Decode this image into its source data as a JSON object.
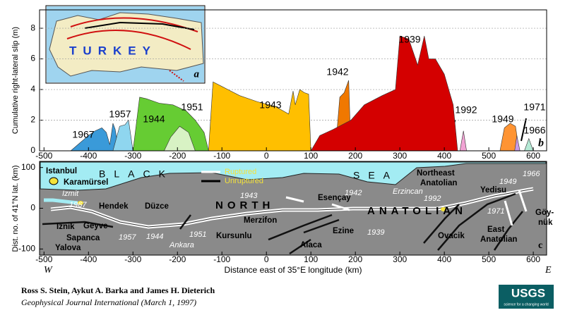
{
  "chart_data": [
    {
      "type": "area",
      "ylabel": "Cumulative right-lateral slip (m)",
      "panel_label": "b",
      "xlim": [
        -510,
        630
      ],
      "ylim": [
        0,
        9.2
      ],
      "xticks": [
        -500,
        -400,
        -300,
        -200,
        -100,
        0,
        100,
        200,
        300,
        400,
        500,
        600
      ],
      "yticks": [
        0,
        2,
        4,
        6,
        8
      ],
      "series": [
        {
          "name": "1967",
          "color": "#3a9ad9",
          "x": [
            -440,
            -420,
            -400,
            -385,
            -370,
            -360,
            -352,
            -345,
            -340,
            -332
          ],
          "values": [
            0,
            0.5,
            1.0,
            1.3,
            1.5,
            1.2,
            0.4,
            1.8,
            1.4,
            0
          ]
        },
        {
          "name": "1957",
          "color": "#8fd6ef",
          "x": [
            -345,
            -330,
            -318,
            -310,
            -300
          ],
          "values": [
            0,
            1.6,
            1.7,
            2.0,
            0
          ]
        },
        {
          "name": "1944",
          "color": "#66cc33",
          "x": [
            -300,
            -285,
            -270,
            -240,
            -210,
            -180,
            -160,
            -140,
            -130
          ],
          "values": [
            0,
            3.5,
            3.4,
            3.1,
            3.0,
            2.6,
            2.0,
            1.2,
            0
          ]
        },
        {
          "name": "1951",
          "color": "#d8f2c4",
          "x": [
            -230,
            -215,
            -195,
            -175,
            -160
          ],
          "values": [
            0,
            0.9,
            1.6,
            1.2,
            0
          ]
        },
        {
          "name": "1943",
          "color": "#ffbf00",
          "x": [
            -130,
            -120,
            -100,
            -60,
            -20,
            20,
            50,
            60,
            65,
            75,
            85,
            95,
            100
          ],
          "values": [
            0,
            4.5,
            4.2,
            3.6,
            3.2,
            2.9,
            2.4,
            3.9,
            3.0,
            4.0,
            3.8,
            3.7,
            0
          ]
        },
        {
          "name": "1942",
          "color": "#f07800",
          "x": [
            155,
            165,
            175,
            185,
            190
          ],
          "values": [
            0,
            3.5,
            3.8,
            4.6,
            0
          ]
        },
        {
          "name": "1939",
          "color": "#d40000",
          "x": [
            100,
            120,
            150,
            190,
            220,
            260,
            290,
            300,
            320,
            340,
            355,
            365,
            380,
            400,
            420,
            430
          ],
          "values": [
            0,
            1.0,
            1.4,
            2.0,
            3.0,
            3.6,
            4.0,
            7.5,
            7.3,
            5.6,
            7.5,
            6.0,
            6.0,
            5.0,
            3.0,
            0
          ]
        },
        {
          "name": "1992",
          "color": "#f1a3d4",
          "x": [
            435,
            443,
            450
          ],
          "values": [
            0,
            1.3,
            0
          ]
        },
        {
          "name": "1949",
          "color": "#ff9433",
          "x": [
            525,
            535,
            548,
            560,
            568
          ],
          "values": [
            0,
            1.5,
            1.8,
            1.6,
            0
          ]
        },
        {
          "name": "1971",
          "color": "#c89be8",
          "x": [
            558,
            563,
            570
          ],
          "values": [
            0,
            1.0,
            0
          ]
        },
        {
          "name": "1966",
          "color": "#b5ead6",
          "x": [
            580,
            590,
            600
          ],
          "values": [
            0,
            0.8,
            0
          ]
        }
      ]
    },
    {
      "type": "map",
      "ylabel": "Dist. no. of 41°N lat. (km)",
      "xlabel": "Distance east of 35°E longitude (km)",
      "xlim": [
        -510,
        630
      ],
      "ylim": [
        -115,
        115
      ],
      "xticks": [
        -500,
        -400,
        -300,
        -200,
        -100,
        0,
        100,
        200,
        300,
        400,
        500,
        600
      ],
      "yticks": [
        -100,
        0,
        100
      ],
      "labels": [
        "Istanbul",
        "Karamürsel",
        "Izmit",
        "1967",
        "Hendek",
        "Düzce",
        "NORTH",
        "1943",
        "Esençay",
        "1942",
        "Merzifon",
        "ANATOLIAN",
        "Erzincan",
        "1992",
        "Northeast",
        "Anatolian",
        "1966",
        "Yedisu",
        "1949",
        "1971",
        "Göy-",
        "nük",
        "East",
        "Anatolian",
        "Ovacik",
        "Ezine",
        "1939",
        "Alaca",
        "Kursunlu",
        "1951",
        "Ankara",
        "1944",
        "1957",
        "Geyve",
        "Iznik",
        "Sapanca",
        "Yalova",
        "BLACK",
        "SEA",
        "Ruptured",
        "Unruptured",
        "W",
        "E",
        "c"
      ]
    }
  ],
  "inset": {
    "title": "TURKEY",
    "panel_label": "a"
  },
  "credits": {
    "authors": "Ross S. Stein, Aykut A. Barka and James H. Dieterich",
    "journal": "Geophysical Journal International (March 1, 1997)"
  },
  "logo": {
    "name": "USGS",
    "tagline": "science for a changing world"
  }
}
